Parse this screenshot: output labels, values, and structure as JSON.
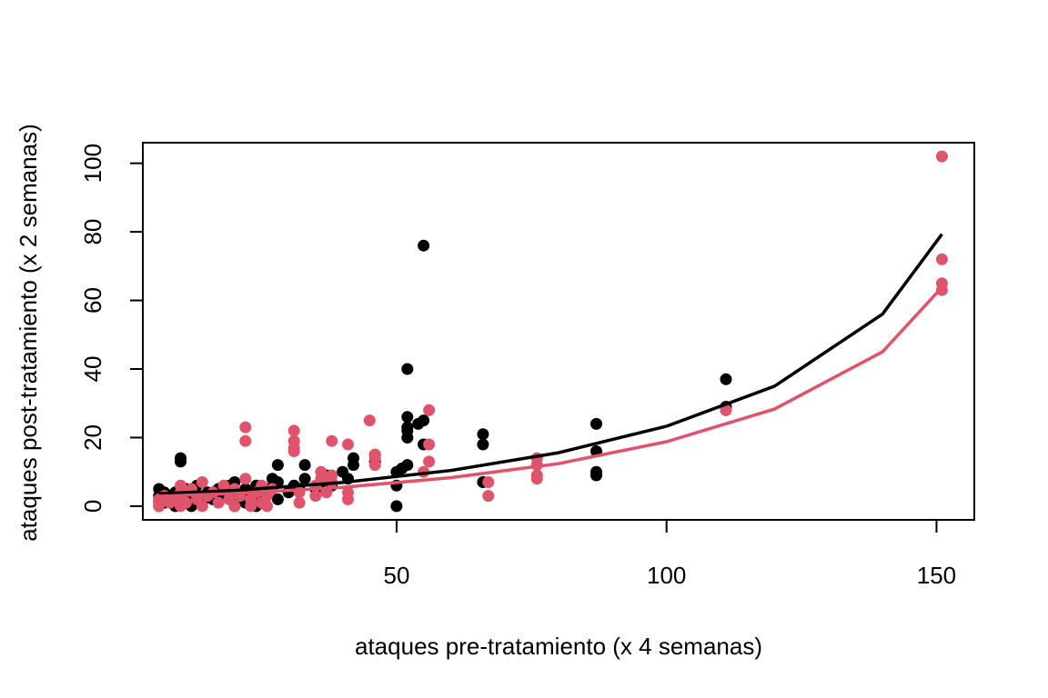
{
  "chart_data": {
    "type": "scatter",
    "title": "",
    "xlabel": "ataques pre-tratamiento (x 4 semanas)",
    "ylabel": "ataques post-tratamiento (x 2 semanas)",
    "xlim": [
      3,
      157
    ],
    "ylim": [
      -4,
      106
    ],
    "xticks": [
      50,
      100,
      150
    ],
    "yticks": [
      0,
      20,
      40,
      60,
      80,
      100
    ],
    "grid": false,
    "legend": "none",
    "series": [
      {
        "color": "#000000",
        "points": [
          [
            6,
            0
          ],
          [
            6,
            1
          ],
          [
            6,
            2
          ],
          [
            6,
            3
          ],
          [
            6,
            5
          ],
          [
            7,
            1
          ],
          [
            7,
            4
          ],
          [
            8,
            2
          ],
          [
            8,
            3
          ],
          [
            9,
            0
          ],
          [
            9,
            4
          ],
          [
            10,
            1
          ],
          [
            10,
            13
          ],
          [
            10,
            14
          ],
          [
            11,
            2
          ],
          [
            11,
            5
          ],
          [
            12,
            0
          ],
          [
            12,
            3
          ],
          [
            13,
            6
          ],
          [
            14,
            1
          ],
          [
            15,
            4
          ],
          [
            16,
            2
          ],
          [
            17,
            5
          ],
          [
            18,
            3
          ],
          [
            19,
            6
          ],
          [
            20,
            0
          ],
          [
            20,
            2
          ],
          [
            20,
            7
          ],
          [
            21,
            4
          ],
          [
            22,
            1
          ],
          [
            22,
            5
          ],
          [
            23,
            3
          ],
          [
            24,
            0
          ],
          [
            24,
            6
          ],
          [
            25,
            2
          ],
          [
            26,
            5
          ],
          [
            27,
            8
          ],
          [
            28,
            2
          ],
          [
            28,
            7
          ],
          [
            28,
            12
          ],
          [
            30,
            4
          ],
          [
            31,
            6
          ],
          [
            32,
            5
          ],
          [
            33,
            8
          ],
          [
            33,
            12
          ],
          [
            35,
            5
          ],
          [
            36,
            7
          ],
          [
            37,
            9
          ],
          [
            38,
            6
          ],
          [
            40,
            10
          ],
          [
            41,
            8
          ],
          [
            42,
            12
          ],
          [
            42,
            14
          ],
          [
            46,
            13
          ],
          [
            46,
            15
          ],
          [
            50,
            0
          ],
          [
            50,
            6
          ],
          [
            50,
            10
          ],
          [
            51,
            11
          ],
          [
            52,
            12
          ],
          [
            52,
            20
          ],
          [
            52,
            22
          ],
          [
            52,
            23
          ],
          [
            52,
            26
          ],
          [
            52,
            40
          ],
          [
            54,
            24
          ],
          [
            55,
            18
          ],
          [
            55,
            25
          ],
          [
            55,
            76
          ],
          [
            66,
            7
          ],
          [
            66,
            18
          ],
          [
            66,
            21
          ],
          [
            87,
            9
          ],
          [
            87,
            10
          ],
          [
            87,
            16
          ],
          [
            87,
            24
          ],
          [
            111,
            28
          ],
          [
            111,
            29
          ],
          [
            111,
            37
          ]
        ],
        "fit": [
          [
            6,
            3.6
          ],
          [
            20,
            4.6
          ],
          [
            40,
            6.9
          ],
          [
            60,
            10.4
          ],
          [
            80,
            15.6
          ],
          [
            100,
            23.3
          ],
          [
            120,
            35.0
          ],
          [
            140,
            56.0
          ],
          [
            151,
            79.3
          ]
        ]
      },
      {
        "color": "#DF536B",
        "points": [
          [
            6,
            0
          ],
          [
            6,
            1
          ],
          [
            6,
            2
          ],
          [
            7,
            3
          ],
          [
            8,
            1
          ],
          [
            9,
            2
          ],
          [
            10,
            0
          ],
          [
            10,
            3
          ],
          [
            10,
            4
          ],
          [
            10,
            6
          ],
          [
            11,
            1
          ],
          [
            12,
            5
          ],
          [
            13,
            2
          ],
          [
            14,
            0
          ],
          [
            14,
            7
          ],
          [
            15,
            3
          ],
          [
            16,
            4
          ],
          [
            17,
            1
          ],
          [
            18,
            6
          ],
          [
            19,
            2
          ],
          [
            20,
            0
          ],
          [
            20,
            5
          ],
          [
            21,
            3
          ],
          [
            22,
            8
          ],
          [
            22,
            19
          ],
          [
            22,
            23
          ],
          [
            23,
            0
          ],
          [
            23,
            2
          ],
          [
            24,
            4
          ],
          [
            25,
            1
          ],
          [
            25,
            6
          ],
          [
            26,
            0
          ],
          [
            26,
            3
          ],
          [
            27,
            5
          ],
          [
            31,
            16
          ],
          [
            31,
            17
          ],
          [
            31,
            19
          ],
          [
            31,
            22
          ],
          [
            32,
            1
          ],
          [
            32,
            4
          ],
          [
            35,
            3
          ],
          [
            35,
            6
          ],
          [
            36,
            8
          ],
          [
            36,
            10
          ],
          [
            37,
            4
          ],
          [
            38,
            7
          ],
          [
            38,
            9
          ],
          [
            38,
            19
          ],
          [
            41,
            2
          ],
          [
            41,
            4
          ],
          [
            41,
            18
          ],
          [
            45,
            25
          ],
          [
            46,
            12
          ],
          [
            46,
            14
          ],
          [
            46,
            15
          ],
          [
            55,
            10
          ],
          [
            56,
            13
          ],
          [
            56,
            18
          ],
          [
            56,
            28
          ],
          [
            67,
            3
          ],
          [
            67,
            7
          ],
          [
            76,
            8
          ],
          [
            76,
            9
          ],
          [
            76,
            12
          ],
          [
            76,
            14
          ],
          [
            111,
            28
          ],
          [
            151,
            63
          ],
          [
            151,
            65
          ],
          [
            151,
            72
          ],
          [
            151,
            102
          ]
        ],
        "fit": [
          [
            6,
            2.9
          ],
          [
            20,
            3.7
          ],
          [
            40,
            5.5
          ],
          [
            60,
            8.3
          ],
          [
            80,
            12.4
          ],
          [
            100,
            18.8
          ],
          [
            120,
            28.3
          ],
          [
            140,
            45.0
          ],
          [
            151,
            63.8
          ]
        ]
      }
    ]
  }
}
